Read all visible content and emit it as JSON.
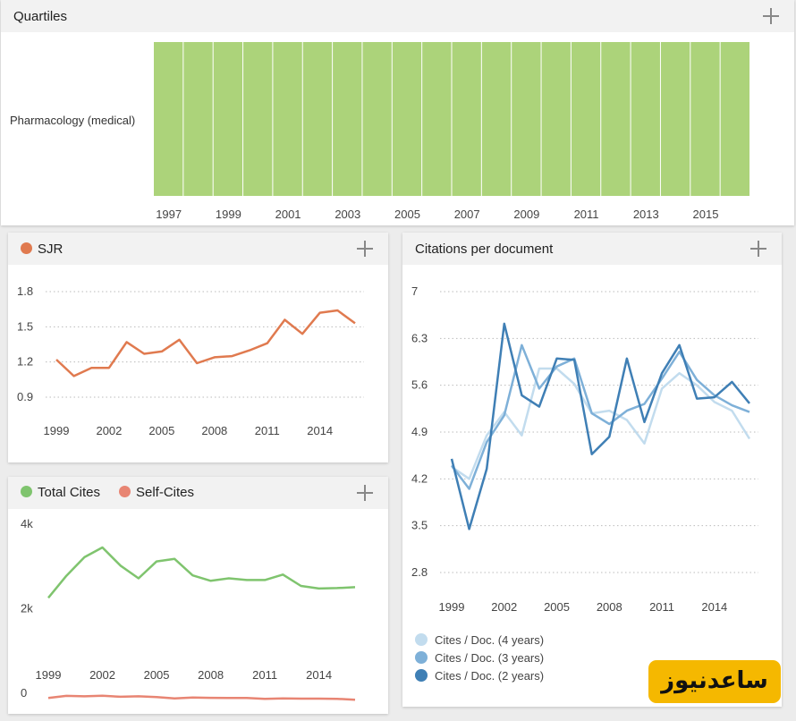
{
  "quartiles": {
    "title": "Quartiles",
    "category": "Pharmacology (medical)",
    "bar_color": "#acd37a",
    "years": [
      1997,
      1998,
      1999,
      2000,
      2001,
      2002,
      2003,
      2004,
      2005,
      2006,
      2007,
      2008,
      2009,
      2010,
      2011,
      2012,
      2013,
      2014,
      2015,
      2016
    ],
    "tick_labels": [
      "1997",
      "1999",
      "2001",
      "2003",
      "2005",
      "2007",
      "2009",
      "2011",
      "2013",
      "2015"
    ]
  },
  "sjr": {
    "title": "SJR",
    "color": "#e07a4f"
  },
  "cites": {
    "total_label": "Total Cites",
    "self_label": "Self-Cites",
    "total_color": "#7fc46e",
    "self_color": "#e88573"
  },
  "citations": {
    "title": "Citations per document",
    "legend": [
      "Cites / Doc. (4 years)",
      "Cites / Doc. (3 years)",
      "Cites / Doc. (2 years)"
    ],
    "colors": [
      "#c2dcee",
      "#7eb0d8",
      "#3f7fb5"
    ]
  },
  "watermark": {
    "text": "ساعدنیوز"
  },
  "chart_data": [
    {
      "type": "bar",
      "title": "Quartiles",
      "categories": [
        1997,
        1998,
        1999,
        2000,
        2001,
        2002,
        2003,
        2004,
        2005,
        2006,
        2007,
        2008,
        2009,
        2010,
        2011,
        2012,
        2013,
        2014,
        2015,
        2016
      ],
      "series": [
        {
          "name": "Pharmacology (medical)",
          "values": [
            "Q1",
            "Q1",
            "Q1",
            "Q1",
            "Q1",
            "Q1",
            "Q1",
            "Q1",
            "Q1",
            "Q1",
            "Q1",
            "Q1",
            "Q1",
            "Q1",
            "Q1",
            "Q1",
            "Q1",
            "Q1",
            "Q1",
            "Q1"
          ]
        }
      ]
    },
    {
      "type": "line",
      "title": "SJR",
      "x": [
        1999,
        2000,
        2001,
        2002,
        2003,
        2004,
        2005,
        2006,
        2007,
        2008,
        2009,
        2010,
        2011,
        2012,
        2013,
        2014,
        2015,
        2016
      ],
      "series": [
        {
          "name": "SJR",
          "values": [
            1.22,
            1.08,
            1.15,
            1.15,
            1.37,
            1.27,
            1.29,
            1.39,
            1.19,
            1.24,
            1.25,
            1.3,
            1.36,
            1.56,
            1.44,
            1.62,
            1.64,
            1.53
          ]
        }
      ],
      "yticks": [
        0.9,
        1.2,
        1.5,
        1.8
      ],
      "ylim": [
        0.9,
        1.8
      ],
      "xticks": [
        1999,
        2002,
        2005,
        2008,
        2011,
        2014
      ],
      "xlim": [
        1999,
        2016
      ],
      "grid": true
    },
    {
      "type": "line",
      "title": "",
      "x": [
        1999,
        2000,
        2001,
        2002,
        2003,
        2004,
        2005,
        2006,
        2007,
        2008,
        2009,
        2010,
        2011,
        2012,
        2013,
        2014,
        2015,
        2016
      ],
      "series": [
        {
          "name": "Total Cites",
          "values": [
            2260,
            2780,
            3220,
            3450,
            3020,
            2720,
            3120,
            3180,
            2790,
            2660,
            2720,
            2680,
            2680,
            2810,
            2540,
            2480,
            2490,
            2510
          ]
        },
        {
          "name": "Self-Cites",
          "values": [
            -110,
            -60,
            -70,
            -55,
            -80,
            -70,
            -90,
            -120,
            -100,
            -105,
            -110,
            -110,
            -130,
            -120,
            -125,
            -125,
            -130,
            -150
          ]
        }
      ],
      "yticks": [
        0,
        2000,
        4000
      ],
      "ytick_labels": [
        "0",
        "2k",
        "4k"
      ],
      "ylim": [
        -400,
        4000
      ],
      "xticks": [
        1999,
        2002,
        2005,
        2008,
        2011,
        2014
      ],
      "xlim": [
        1999,
        2016
      ]
    },
    {
      "type": "line",
      "title": "Citations per document",
      "x": [
        1999,
        2000,
        2001,
        2002,
        2003,
        2004,
        2005,
        2006,
        2007,
        2008,
        2009,
        2010,
        2011,
        2012,
        2013,
        2014,
        2015,
        2016
      ],
      "series": [
        {
          "name": "Cites / Doc. (4 years)",
          "values": [
            4.38,
            4.2,
            4.85,
            5.2,
            4.85,
            5.85,
            5.85,
            5.62,
            5.18,
            5.22,
            5.08,
            4.73,
            5.55,
            5.78,
            5.6,
            5.35,
            5.22,
            4.8
          ]
        },
        {
          "name": "Cites / Doc. (3 years)",
          "values": [
            4.4,
            4.05,
            4.75,
            5.15,
            6.2,
            5.55,
            5.88,
            6.0,
            5.18,
            5.02,
            5.22,
            5.32,
            5.7,
            6.1,
            5.68,
            5.45,
            5.3,
            5.2
          ]
        },
        {
          "name": "Cites / Doc. (2 years)",
          "values": [
            4.5,
            3.45,
            4.35,
            6.52,
            5.45,
            5.28,
            6.0,
            5.98,
            4.57,
            4.83,
            6.0,
            5.05,
            5.78,
            6.2,
            5.4,
            5.42,
            5.65,
            5.33
          ]
        }
      ],
      "yticks": [
        2.8,
        3.5,
        4.2,
        4.9,
        5.6,
        6.3,
        7
      ],
      "ylim": [
        2.8,
        7
      ],
      "xticks": [
        1999,
        2002,
        2005,
        2008,
        2011,
        2014
      ],
      "xlim": [
        1999,
        2016
      ],
      "grid": true
    }
  ]
}
